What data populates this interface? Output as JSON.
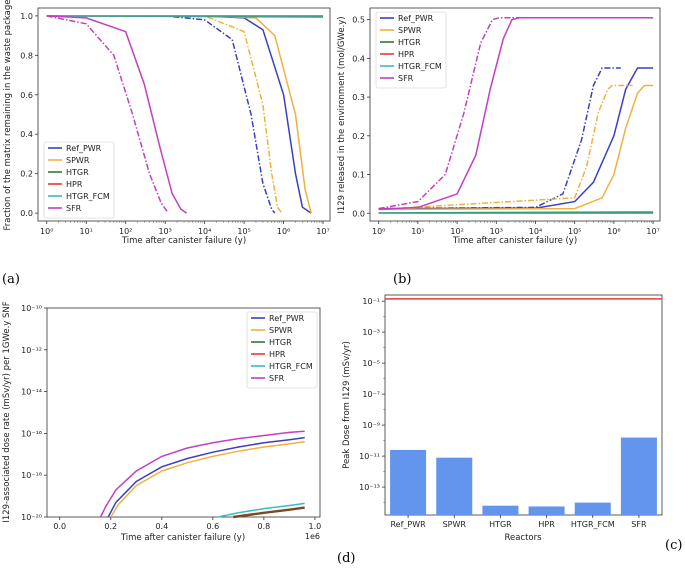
{
  "panel_labels": [
    "(a)",
    "(b)",
    "(d)",
    "(c)"
  ],
  "colors": {
    "Ref_PWR": "#3a3fc4",
    "SPWR": "#f0b13d",
    "HTGR": "#2e7d32",
    "HPR": "#e53935",
    "HTGR_FCM": "#3bbcc0",
    "SFR": "#c040c0",
    "bar": "#6495ed"
  },
  "chart_data": [
    {
      "id": "a",
      "type": "line",
      "title": "",
      "xlabel": "Time after canister failure (y)",
      "ylabel": "Fraction of the matrix remaining in the waste package",
      "xscale": "log",
      "xlim": [
        0.6,
        15000000
      ],
      "ylim": [
        -0.04,
        1.04
      ],
      "xticks": [
        1,
        10,
        100,
        1000,
        10000,
        100000,
        1000000,
        10000000
      ],
      "xtick_labels": [
        "10⁰",
        "10¹",
        "10²",
        "10³",
        "10⁴",
        "10⁵",
        "10⁶",
        "10⁷"
      ],
      "yticks": [
        0.0,
        0.2,
        0.4,
        0.6,
        0.8,
        1.0
      ],
      "ytick_labels": [
        "0.0",
        "0.2",
        "0.4",
        "0.6",
        "0.8",
        "1.0"
      ],
      "legend": [
        "Ref_PWR",
        "SPWR",
        "HTGR",
        "HPR",
        "HTGR_FCM",
        "SFR"
      ],
      "legend_loc": "lower-left",
      "series": [
        {
          "name": "Ref_PWR",
          "style": "solid",
          "x": [
            1,
            10000,
            100000,
            300000,
            1000000,
            2000000,
            3000000,
            5000000
          ],
          "y": [
            1,
            1,
            0.99,
            0.93,
            0.6,
            0.2,
            0.03,
            0
          ]
        },
        {
          "name": "Ref_PWR",
          "style": "dashdot",
          "x": [
            1,
            1000,
            10000,
            50000,
            150000,
            300000,
            500000,
            600000
          ],
          "y": [
            1,
            1,
            0.98,
            0.88,
            0.5,
            0.15,
            0.02,
            0
          ]
        },
        {
          "name": "SPWR",
          "style": "solid",
          "x": [
            1,
            10000,
            200000,
            600000,
            2000000,
            3500000,
            5000000
          ],
          "y": [
            1,
            1,
            0.99,
            0.9,
            0.5,
            0.12,
            0
          ]
        },
        {
          "name": "SPWR",
          "style": "dashdot",
          "x": [
            1,
            10000,
            100000,
            300000,
            500000,
            700000,
            900000
          ],
          "y": [
            1,
            1,
            0.92,
            0.55,
            0.2,
            0.03,
            0
          ]
        },
        {
          "name": "HTGR",
          "style": "solid",
          "x": [
            1,
            10000000
          ],
          "y": [
            1,
            0.995
          ]
        },
        {
          "name": "HPR",
          "style": "solid",
          "x": [
            1,
            10000000
          ],
          "y": [
            1,
            1
          ]
        },
        {
          "name": "HTGR_FCM",
          "style": "solid",
          "x": [
            1,
            10000000
          ],
          "y": [
            1,
            1
          ]
        },
        {
          "name": "SFR",
          "style": "solid",
          "x": [
            1,
            10,
            100,
            300,
            700,
            1500,
            2500,
            3500
          ],
          "y": [
            1,
            0.99,
            0.92,
            0.65,
            0.35,
            0.1,
            0.02,
            0
          ]
        },
        {
          "name": "SFR",
          "style": "dashdot",
          "x": [
            1,
            10,
            50,
            150,
            400,
            800,
            1200
          ],
          "y": [
            1,
            0.96,
            0.8,
            0.5,
            0.2,
            0.05,
            0
          ]
        }
      ]
    },
    {
      "id": "b",
      "type": "line",
      "title": "",
      "xlabel": "Time after canister failure (y)",
      "ylabel": "I129 released in the environment (mol/GWe.y)",
      "xscale": "log",
      "xlim": [
        0.6,
        15000000
      ],
      "ylim": [
        -0.02,
        0.53
      ],
      "xticks": [
        1,
        10,
        100,
        1000,
        10000,
        100000,
        1000000,
        10000000
      ],
      "xtick_labels": [
        "10⁰",
        "10¹",
        "10²",
        "10³",
        "10⁴",
        "10⁵",
        "10⁶",
        "10⁷"
      ],
      "yticks": [
        0.0,
        0.1,
        0.2,
        0.3,
        0.4,
        0.5
      ],
      "ytick_labels": [
        "0.0",
        "0.1",
        "0.2",
        "0.3",
        "0.4",
        "0.5"
      ],
      "legend": [
        "Ref_PWR",
        "SPWR",
        "HTGR",
        "HPR",
        "HTGR_FCM",
        "SFR"
      ],
      "legend_loc": "upper-left",
      "series": [
        {
          "name": "Ref_PWR",
          "style": "solid",
          "x": [
            1,
            10000,
            100000,
            300000,
            1000000,
            2000000,
            4000000,
            10000000
          ],
          "y": [
            0.012,
            0.013,
            0.03,
            0.08,
            0.2,
            0.32,
            0.375,
            0.375
          ]
        },
        {
          "name": "Ref_PWR",
          "style": "dashdot",
          "x": [
            1,
            10000,
            50000,
            150000,
            300000,
            500000,
            700000,
            1500000
          ],
          "y": [
            0.012,
            0.015,
            0.05,
            0.19,
            0.33,
            0.375,
            0.375,
            0.375
          ]
        },
        {
          "name": "SPWR",
          "style": "solid",
          "x": [
            1,
            100000,
            500000,
            1000000,
            2000000,
            4000000,
            6000000,
            10000000
          ],
          "y": [
            0.01,
            0.012,
            0.04,
            0.1,
            0.22,
            0.31,
            0.33,
            0.33
          ]
        },
        {
          "name": "SPWR",
          "style": "dashdot",
          "x": [
            1,
            100000,
            200000,
            400000,
            700000,
            900000,
            3000000
          ],
          "y": [
            0.01,
            0.04,
            0.12,
            0.26,
            0.32,
            0.33,
            0.33
          ]
        },
        {
          "name": "HTGR",
          "style": "solid",
          "x": [
            1,
            10000000
          ],
          "y": [
            0.001,
            0.003
          ]
        },
        {
          "name": "HPR",
          "style": "solid",
          "x": [
            1,
            10000000
          ],
          "y": [
            0.0,
            0.0
          ]
        },
        {
          "name": "HTGR_FCM",
          "style": "solid",
          "x": [
            1,
            10000000
          ],
          "y": [
            0.0,
            0.0
          ]
        },
        {
          "name": "SFR",
          "style": "solid",
          "x": [
            1,
            10,
            100,
            300,
            700,
            1500,
            2500,
            4000,
            10000000
          ],
          "y": [
            0.01,
            0.015,
            0.05,
            0.15,
            0.32,
            0.45,
            0.5,
            0.505,
            0.505
          ]
        },
        {
          "name": "SFR",
          "style": "dashdot",
          "x": [
            1,
            10,
            50,
            150,
            400,
            800,
            1200,
            10000000
          ],
          "y": [
            0.012,
            0.03,
            0.1,
            0.26,
            0.44,
            0.5,
            0.505,
            0.505
          ]
        }
      ]
    },
    {
      "id": "d",
      "type": "line",
      "title": "",
      "xlabel": "Time after canister failure (y)",
      "ylabel": "I129-associated dose rate (mSv/yr) per 1GWe.y SNF",
      "offset_text": "1e6",
      "xscale": "linear",
      "yscale": "log",
      "xlim": [
        -0.05,
        1.02
      ],
      "ylim_exp": [
        -20,
        -10
      ],
      "xticks": [
        0.0,
        0.2,
        0.4,
        0.6,
        0.8,
        1.0
      ],
      "xtick_labels": [
        "0.0",
        "0.2",
        "0.4",
        "0.6",
        "0.8",
        "1.0"
      ],
      "yticks_exp": [
        -20,
        -18,
        -16,
        -14,
        -12,
        -10
      ],
      "ytick_labels": [
        "10⁻²⁰",
        "10⁻¹⁸",
        "10⁻¹⁶",
        "10⁻¹⁴",
        "10⁻¹²",
        "10⁻¹⁰"
      ],
      "legend": [
        "Ref_PWR",
        "SPWR",
        "HTGR",
        "HPR",
        "HTGR_FCM",
        "SFR"
      ],
      "legend_loc": "upper-right",
      "series": [
        {
          "name": "Ref_PWR",
          "x": [
            0.19,
            0.22,
            0.3,
            0.4,
            0.5,
            0.6,
            0.7,
            0.8,
            0.9,
            0.96
          ],
          "y_exp": [
            -20,
            -19.3,
            -18.3,
            -17.6,
            -17.2,
            -16.9,
            -16.65,
            -16.45,
            -16.3,
            -16.2
          ]
        },
        {
          "name": "SPWR",
          "x": [
            0.2,
            0.23,
            0.3,
            0.4,
            0.5,
            0.6,
            0.7,
            0.8,
            0.9,
            0.96
          ],
          "y_exp": [
            -20,
            -19.4,
            -18.5,
            -17.8,
            -17.4,
            -17.1,
            -16.85,
            -16.65,
            -16.5,
            -16.4
          ]
        },
        {
          "name": "HTGR",
          "x": [
            0.68,
            0.8,
            0.9,
            0.96
          ],
          "y_exp": [
            -20,
            -19.8,
            -19.65,
            -19.55
          ]
        },
        {
          "name": "HPR",
          "x": [],
          "y_exp": []
        },
        {
          "name": "HTGR_FCM",
          "x": [
            0.62,
            0.7,
            0.8,
            0.9,
            0.96
          ],
          "y_exp": [
            -20,
            -19.8,
            -19.6,
            -19.45,
            -19.35
          ]
        },
        {
          "name": "SFR",
          "x": [
            0.16,
            0.18,
            0.22,
            0.3,
            0.4,
            0.5,
            0.6,
            0.7,
            0.8,
            0.9,
            0.96
          ],
          "y_exp": [
            -20,
            -19.5,
            -18.7,
            -17.8,
            -17.1,
            -16.7,
            -16.45,
            -16.25,
            -16.1,
            -15.95,
            -15.9
          ]
        }
      ]
    },
    {
      "id": "c",
      "type": "bar",
      "title": "",
      "xlabel": "Reactors",
      "ylabel": "Peak Dose from I129 (mSv/yr)",
      "yscale": "log",
      "ylim_exp": [
        -14.8,
        -0.6
      ],
      "yticks_exp": [
        -1,
        -3,
        -5,
        -7,
        -9,
        -11,
        -13
      ],
      "ytick_labels": [
        "10⁻¹",
        "10⁻³",
        "10⁻⁵",
        "10⁻⁷",
        "10⁻⁹",
        "10⁻¹¹",
        "10⁻¹³"
      ],
      "categories": [
        "Ref_PWR",
        "SPWR",
        "HTGR",
        "HPR",
        "HTGR_FCM",
        "SFR"
      ],
      "values_exp": [
        -10.6,
        -11.1,
        -14.2,
        -14.25,
        -14.0,
        -9.8
      ],
      "reference_line_exp": -0.85
    }
  ]
}
